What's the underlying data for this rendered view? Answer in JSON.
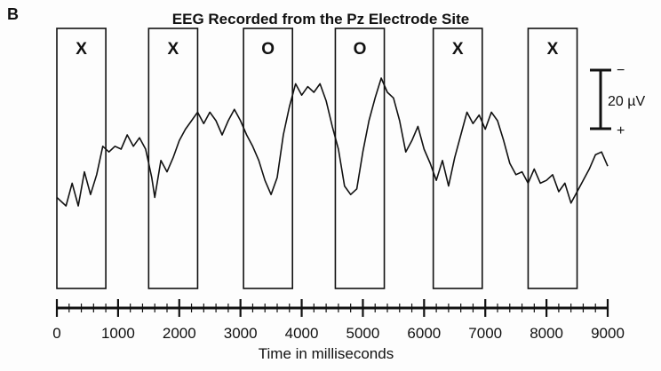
{
  "chart_data": {
    "type": "line",
    "panel_label": "B",
    "title": "EEG Recorded from the Pz Electrode Site",
    "xlabel": "Time in milliseconds",
    "ylabel": "",
    "xlim": [
      0,
      9000
    ],
    "x_ticks": [
      "0",
      "1000",
      "2000",
      "3000",
      "4000",
      "5000",
      "6000",
      "7000",
      "8000",
      "9000"
    ],
    "polarity_note": "negative up",
    "scale_bar": {
      "value_label": "20 µV",
      "top_sign": "−",
      "bottom_sign": "+"
    },
    "stimulus_windows": [
      {
        "label": "X",
        "start_ms": 0,
        "end_ms": 800
      },
      {
        "label": "X",
        "start_ms": 1500,
        "end_ms": 2300
      },
      {
        "label": "O",
        "start_ms": 3050,
        "end_ms": 3850
      },
      {
        "label": "O",
        "start_ms": 4550,
        "end_ms": 5350
      },
      {
        "label": "X",
        "start_ms": 6150,
        "end_ms": 6950
      },
      {
        "label": "X",
        "start_ms": 7700,
        "end_ms": 8500
      }
    ],
    "series": [
      {
        "units": "µV (relative, negative up)",
        "x": [
          0,
          150,
          250,
          350,
          450,
          550,
          650,
          750,
          850,
          950,
          1050,
          1150,
          1250,
          1350,
          1450,
          1550,
          1600,
          1700,
          1800,
          1900,
          2000,
          2100,
          2200,
          2300,
          2400,
          2500,
          2600,
          2700,
          2800,
          2900,
          3000,
          3100,
          3200,
          3300,
          3400,
          3500,
          3600,
          3700,
          3800,
          3900,
          4000,
          4100,
          4200,
          4300,
          4400,
          4500,
          4600,
          4700,
          4800,
          4900,
          5000,
          5100,
          5200,
          5300,
          5400,
          5500,
          5600,
          5700,
          5800,
          5900,
          6000,
          6100,
          6200,
          6300,
          6400,
          6500,
          6600,
          6700,
          6800,
          6900,
          7000,
          7100,
          7200,
          7300,
          7400,
          7500,
          7600,
          7700,
          7800,
          7900,
          8000,
          8100,
          8200,
          8300,
          8400,
          8500,
          8600,
          8700,
          8800,
          8900,
          9000
        ],
        "y": [
          -14,
          -20,
          -4,
          -20,
          4,
          -12,
          2,
          22,
          18,
          22,
          20,
          30,
          22,
          28,
          20,
          0,
          -14,
          12,
          4,
          14,
          26,
          34,
          40,
          46,
          38,
          46,
          40,
          30,
          40,
          48,
          40,
          30,
          22,
          12,
          -2,
          -12,
          0,
          30,
          50,
          66,
          58,
          64,
          60,
          66,
          54,
          36,
          20,
          -6,
          -12,
          -8,
          18,
          40,
          56,
          70,
          60,
          56,
          40,
          18,
          26,
          36,
          20,
          10,
          -2,
          12,
          -6,
          14,
          30,
          46,
          38,
          44,
          34,
          46,
          40,
          26,
          10,
          2,
          4,
          -4,
          6,
          -4,
          -2,
          2,
          -10,
          -4,
          -18,
          -10,
          -2,
          6,
          16,
          18,
          8
        ]
      }
    ]
  }
}
